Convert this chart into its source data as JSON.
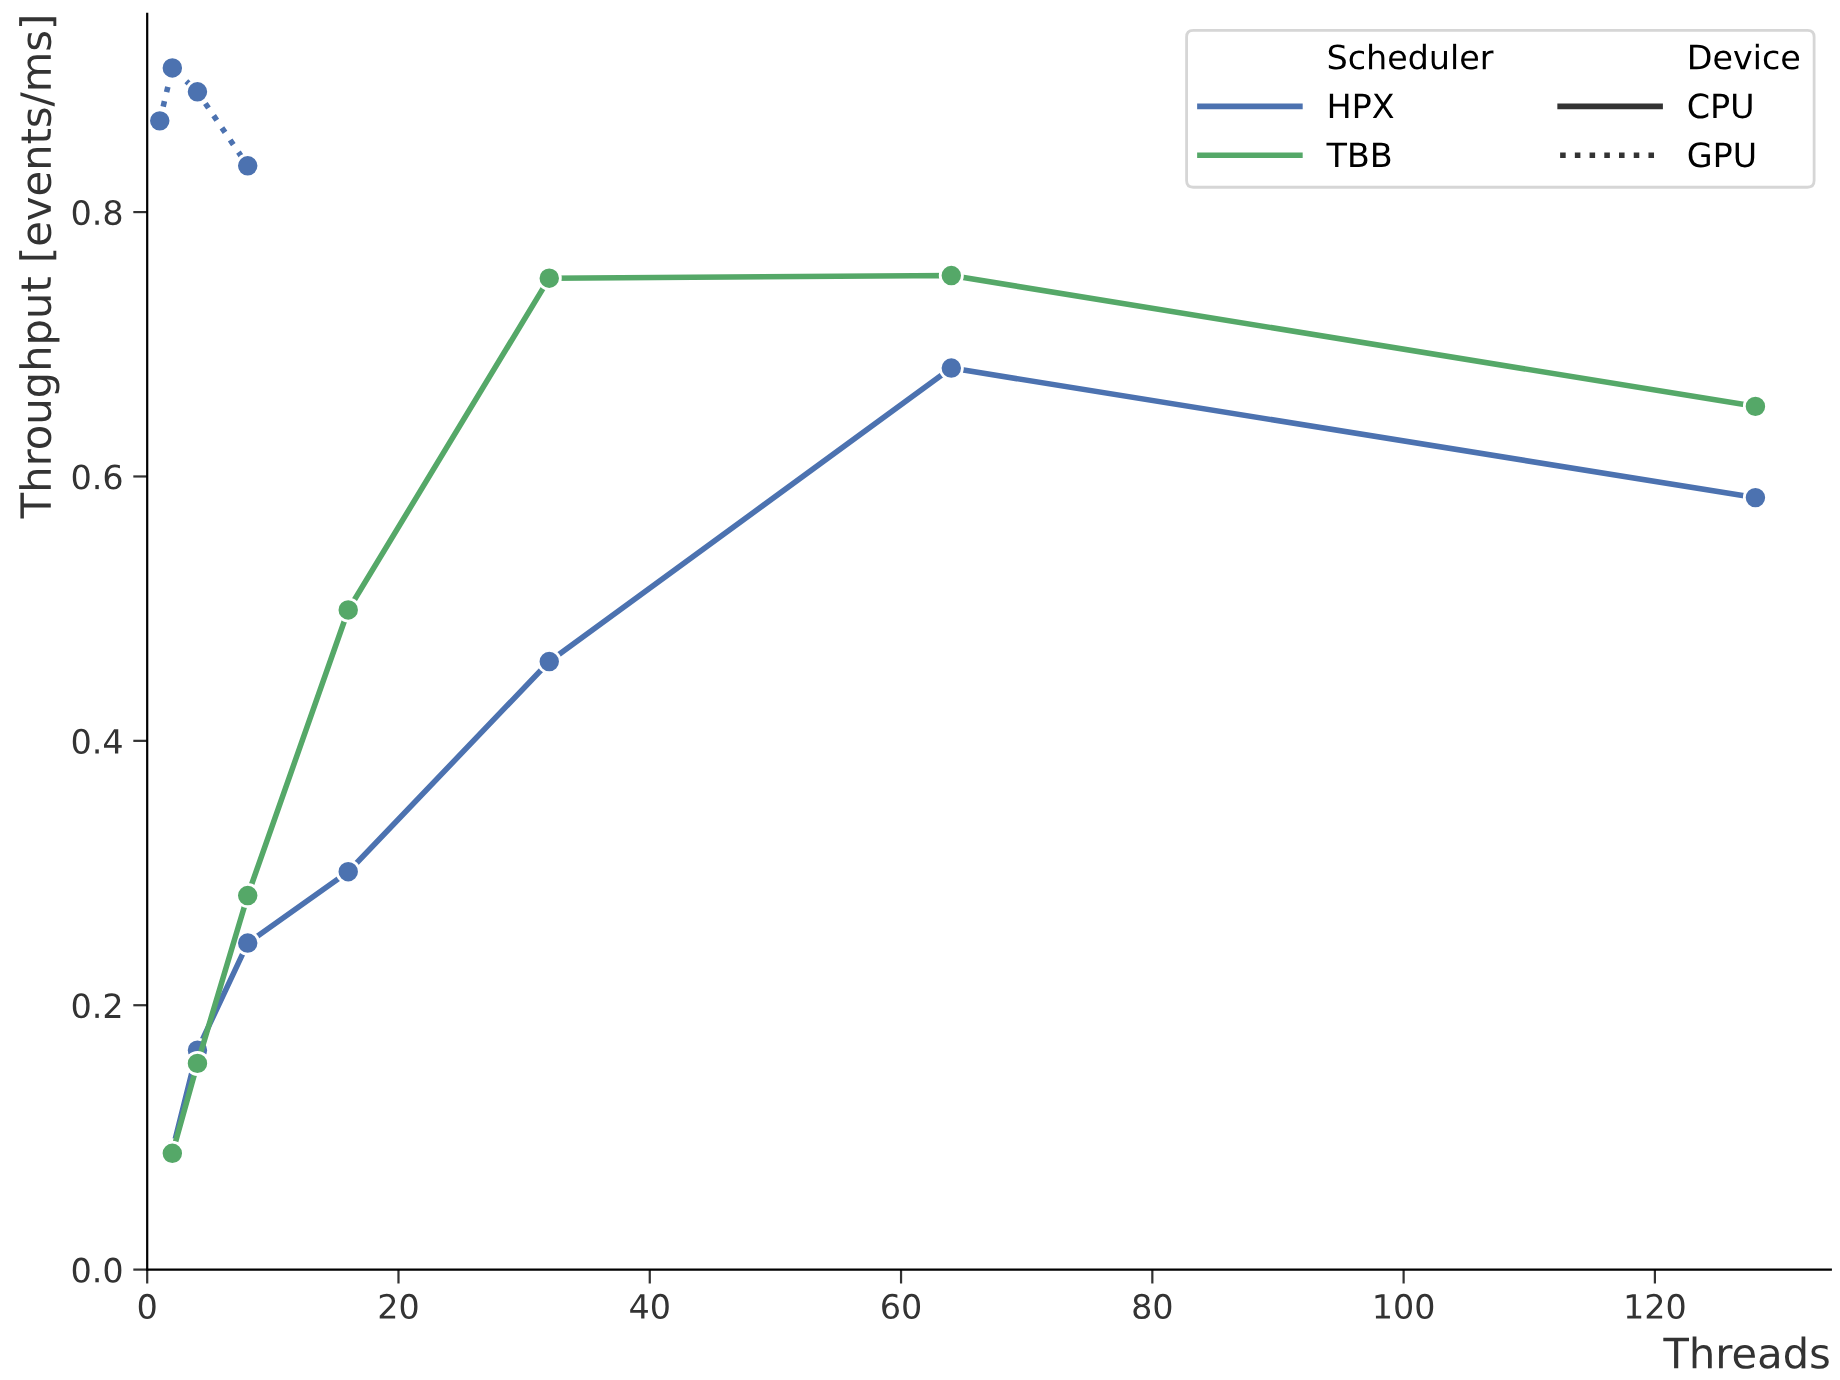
{
  "chart_data": {
    "type": "line",
    "xlabel": "Threads",
    "ylabel": "Throughput [events/ms]",
    "xlim": [
      0,
      134
    ],
    "xticks": [
      0,
      20,
      40,
      60,
      80,
      100,
      120
    ],
    "ylim": [
      0,
      0.95
    ],
    "yticks": [
      {
        "value": 0,
        "label": "0.0"
      },
      0.2,
      0.4,
      0.6,
      0.8
    ],
    "marker": "circle",
    "grid": false,
    "legend": "top right",
    "legend_title": "Scheduler",
    "annotations": [
      "Device",
      "CPU",
      "GPU"
    ],
    "series": [
      {
        "name": "HPX",
        "color": "#4c72b0",
        "line_style": "solid",
        "x": [
          2,
          4,
          8,
          16,
          32,
          64,
          128
        ],
        "values": [
          0.09,
          0.166,
          0.247,
          0.301,
          0.46,
          0.682,
          0.584
        ]
      },
      {
        "name": "TBB",
        "color": "#55a868",
        "line_style": "solid",
        "x": [
          2,
          4,
          8,
          16,
          32,
          64,
          128
        ],
        "values": [
          0.088,
          0.156,
          0.283,
          0.499,
          0.75,
          0.752,
          0.653
        ]
      },
      {
        "color": "#4c72b0",
        "line_style": "dotted",
        "x": [
          1,
          2,
          4,
          8
        ],
        "values": [
          0.869,
          0.909,
          0.891,
          0.835
        ]
      }
    ]
  }
}
